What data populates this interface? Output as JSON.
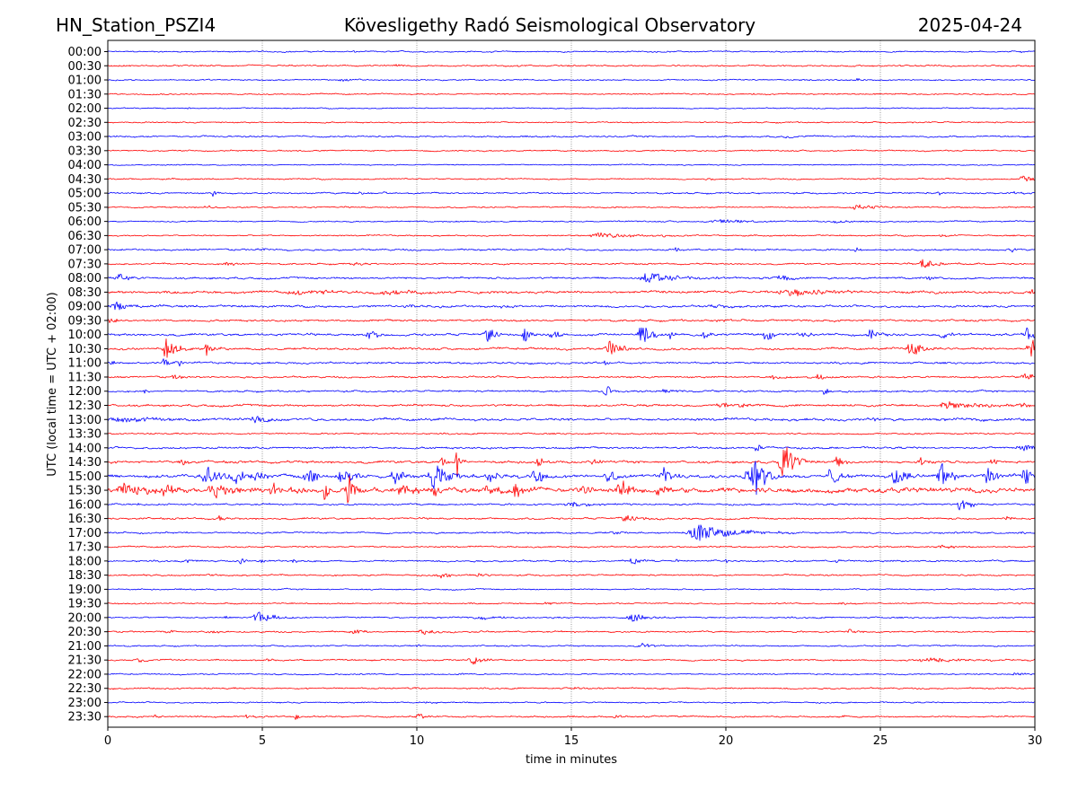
{
  "header": {
    "station": "HN_Station_PSZI4",
    "observatory": "Kövesligethy Radó Seismological Observatory",
    "date": "2025-04-24"
  },
  "chart_data": {
    "type": "line",
    "title": "Kövesligethy Radó Seismological Observatory",
    "xlabel": "time in minutes",
    "ylabel": "UTC (local time = UTC + 02:00)",
    "xlim": [
      0,
      30
    ],
    "xticks": [
      "0",
      "5",
      "10",
      "15",
      "20",
      "25",
      "30"
    ],
    "xtick_values": [
      0,
      5,
      10,
      15,
      20,
      25,
      30
    ],
    "grid": "vertical dotted at x ticks",
    "colors": {
      "even_rows": "#0000ff",
      "odd_rows": "#ff0000",
      "grid": "#555555",
      "axes": "#000000"
    },
    "rows": [
      {
        "label": "00:00",
        "noise": 0.6,
        "events": [
          [
            8.0,
            0.5,
            0.2
          ],
          [
            29.5,
            0.4,
            0.2
          ]
        ]
      },
      {
        "label": "00:30",
        "noise": 0.7,
        "events": [
          [
            9.3,
            0.8,
            0.3
          ],
          [
            13.3,
            0.5,
            0.2
          ]
        ]
      },
      {
        "label": "01:00",
        "noise": 0.6,
        "events": [
          [
            7.6,
            0.8,
            0.3
          ],
          [
            24.3,
            0.8,
            0.3
          ]
        ]
      },
      {
        "label": "01:30",
        "noise": 0.6,
        "events": [
          [
            20.9,
            0.5,
            0.2
          ]
        ]
      },
      {
        "label": "02:00",
        "noise": 0.5,
        "events": [
          [
            2.6,
            0.4,
            0.2
          ]
        ]
      },
      {
        "label": "02:30",
        "noise": 0.6,
        "events": [
          [
            4.9,
            0.4,
            0.2
          ]
        ]
      },
      {
        "label": "03:00",
        "noise": 0.7,
        "events": [
          [
            22.0,
            0.6,
            0.3
          ]
        ]
      },
      {
        "label": "03:30",
        "noise": 0.6,
        "events": [
          [
            5.6,
            0.5,
            0.2
          ]
        ]
      },
      {
        "label": "04:00",
        "noise": 0.5,
        "events": [
          [
            6.6,
            0.5,
            0.1
          ]
        ]
      },
      {
        "label": "04:30",
        "noise": 0.6,
        "events": [
          [
            19.4,
            0.8,
            0.2
          ],
          [
            29.6,
            2.2,
            0.3
          ]
        ]
      },
      {
        "label": "05:00",
        "noise": 0.7,
        "events": [
          [
            3.4,
            2.2,
            0.1
          ],
          [
            8.2,
            1.0,
            0.2
          ],
          [
            9.0,
            1.0,
            0.3
          ],
          [
            26.9,
            2.0,
            0.1
          ],
          [
            29.3,
            1.5,
            0.15
          ]
        ]
      },
      {
        "label": "05:30",
        "noise": 0.6,
        "events": [
          [
            3.2,
            1.2,
            0.2
          ],
          [
            24.3,
            1.4,
            0.8
          ]
        ]
      },
      {
        "label": "06:00",
        "noise": 0.6,
        "events": [
          [
            20.0,
            1.3,
            1.0
          ],
          [
            23.6,
            0.8,
            0.5
          ]
        ]
      },
      {
        "label": "06:30",
        "noise": 0.6,
        "events": [
          [
            16.0,
            1.6,
            0.9
          ],
          [
            18.0,
            1.0,
            0.2
          ],
          [
            27.0,
            0.6,
            0.3
          ]
        ]
      },
      {
        "label": "07:00",
        "noise": 0.8,
        "events": [
          [
            4.9,
            1.2,
            0.3
          ],
          [
            18.4,
            1.8,
            0.1
          ],
          [
            24.2,
            1.8,
            0.1
          ],
          [
            29.2,
            1.2,
            0.3
          ]
        ]
      },
      {
        "label": "07:30",
        "noise": 0.7,
        "events": [
          [
            3.9,
            1.6,
            0.3
          ],
          [
            8.0,
            0.8,
            0.3
          ],
          [
            26.4,
            3.2,
            0.4
          ]
        ]
      },
      {
        "label": "08:00",
        "noise": 0.9,
        "events": [
          [
            0.4,
            2.2,
            0.3
          ],
          [
            17.6,
            3.2,
            0.8
          ],
          [
            21.8,
            2.2,
            0.3
          ],
          [
            26.5,
            1.0,
            0.3
          ]
        ]
      },
      {
        "label": "08:30",
        "noise": 1.1,
        "events": [
          [
            6.2,
            1.6,
            1.2
          ],
          [
            9.2,
            1.3,
            1.0
          ],
          [
            22.3,
            1.8,
            1.4
          ],
          [
            29.9,
            1.8,
            0.2
          ]
        ]
      },
      {
        "label": "09:00",
        "noise": 1.0,
        "events": [
          [
            0.3,
            3.0,
            0.4
          ],
          [
            9.7,
            1.2,
            0.3
          ],
          [
            12.8,
            1.0,
            0.3
          ],
          [
            19.7,
            1.3,
            0.5
          ]
        ]
      },
      {
        "label": "09:30",
        "noise": 0.9,
        "events": [
          [
            0.1,
            1.8,
            0.2
          ],
          [
            19.8,
            1.3,
            0.3
          ]
        ]
      },
      {
        "label": "10:00",
        "noise": 1.0,
        "events": [
          [
            8.5,
            2.6,
            0.3
          ],
          [
            12.3,
            6.0,
            0.25
          ],
          [
            13.5,
            4.2,
            0.2
          ],
          [
            14.4,
            3.4,
            0.25
          ],
          [
            17.3,
            7.0,
            0.3
          ],
          [
            18.2,
            2.8,
            0.1
          ],
          [
            19.3,
            3.8,
            0.15
          ],
          [
            21.3,
            5.2,
            0.2
          ],
          [
            22.4,
            3.2,
            0.2
          ],
          [
            24.7,
            3.6,
            0.3
          ],
          [
            27.0,
            3.4,
            0.2
          ],
          [
            29.8,
            4.8,
            0.4
          ]
        ]
      },
      {
        "label": "10:30",
        "noise": 1.0,
        "events": [
          [
            1.9,
            7.0,
            0.3
          ],
          [
            3.2,
            4.2,
            0.2
          ],
          [
            16.2,
            7.0,
            0.3
          ],
          [
            26.0,
            5.6,
            0.3
          ],
          [
            29.9,
            6.2,
            0.3
          ]
        ]
      },
      {
        "label": "11:00",
        "noise": 0.9,
        "events": [
          [
            0.1,
            1.8,
            0.1
          ],
          [
            1.8,
            4.0,
            0.1
          ],
          [
            2.3,
            3.2,
            0.1
          ],
          [
            16.1,
            2.0,
            0.1
          ]
        ]
      },
      {
        "label": "11:30",
        "noise": 0.8,
        "events": [
          [
            2.2,
            1.6,
            0.3
          ],
          [
            21.5,
            1.4,
            0.3
          ],
          [
            23.0,
            2.2,
            0.2
          ],
          [
            29.8,
            2.2,
            0.6
          ]
        ]
      },
      {
        "label": "12:00",
        "noise": 0.8,
        "events": [
          [
            1.2,
            1.6,
            0.1
          ],
          [
            16.1,
            4.2,
            0.15
          ],
          [
            18.0,
            1.6,
            0.4
          ],
          [
            23.2,
            3.2,
            0.15
          ]
        ]
      },
      {
        "label": "12:30",
        "noise": 1.0,
        "events": [
          [
            20.0,
            1.2,
            1.0
          ],
          [
            27.3,
            2.2,
            1.0
          ],
          [
            29.5,
            1.5,
            0.3
          ]
        ]
      },
      {
        "label": "13:00",
        "noise": 1.2,
        "events": [
          [
            0.6,
            1.4,
            1.5
          ],
          [
            4.8,
            2.4,
            0.3
          ],
          [
            24.8,
            2.0,
            0.1
          ]
        ]
      },
      {
        "label": "13:30",
        "noise": 0.7,
        "events": [
          [
            26.2,
            0.6,
            0.2
          ]
        ]
      },
      {
        "label": "14:00",
        "noise": 0.9,
        "events": [
          [
            21.0,
            3.2,
            0.15
          ],
          [
            29.7,
            1.8,
            0.6
          ]
        ]
      },
      {
        "label": "14:30",
        "noise": 1.1,
        "events": [
          [
            2.4,
            2.5,
            0.2
          ],
          [
            10.8,
            3.2,
            0.2
          ],
          [
            11.3,
            9.5,
            0.1
          ],
          [
            13.9,
            4.2,
            0.15
          ],
          [
            15.7,
            2.0,
            0.2
          ],
          [
            21.9,
            12.0,
            0.35
          ],
          [
            23.6,
            4.2,
            0.2
          ],
          [
            26.3,
            2.6,
            0.2
          ],
          [
            28.6,
            2.2,
            0.2
          ]
        ]
      },
      {
        "label": "15:00",
        "noise": 1.4,
        "events": [
          [
            3.2,
            6.5,
            0.4
          ],
          [
            4.1,
            5.0,
            0.3
          ],
          [
            4.8,
            3.5,
            0.3
          ],
          [
            6.5,
            4.8,
            0.3
          ],
          [
            7.6,
            6.5,
            0.3
          ],
          [
            9.3,
            5.2,
            0.3
          ],
          [
            10.6,
            9.5,
            0.4
          ],
          [
            12.4,
            4.8,
            0.3
          ],
          [
            13.9,
            5.5,
            0.3
          ],
          [
            16.2,
            5.0,
            0.3
          ],
          [
            18.0,
            5.0,
            0.3
          ],
          [
            20.7,
            4.5,
            0.3
          ],
          [
            21.0,
            12.0,
            0.3
          ],
          [
            23.4,
            5.5,
            0.3
          ],
          [
            25.5,
            6.5,
            0.3
          ],
          [
            27.0,
            9.0,
            0.3
          ],
          [
            28.5,
            5.0,
            0.3
          ],
          [
            29.7,
            5.0,
            0.3
          ]
        ]
      },
      {
        "label": "15:30",
        "noise": 2.2,
        "events": [
          [
            0.6,
            3.4,
            0.6
          ],
          [
            1.9,
            4.6,
            0.3
          ],
          [
            3.5,
            4.2,
            0.5
          ],
          [
            5.4,
            3.6,
            0.4
          ],
          [
            7.0,
            5.0,
            0.2
          ],
          [
            7.8,
            9.0,
            0.2
          ],
          [
            9.5,
            4.2,
            0.3
          ],
          [
            10.6,
            3.4,
            0.3
          ],
          [
            12.3,
            3.2,
            0.3
          ],
          [
            13.2,
            3.8,
            0.3
          ],
          [
            15.3,
            3.8,
            0.2
          ],
          [
            16.6,
            7.0,
            0.25
          ],
          [
            17.9,
            3.0,
            0.4
          ]
        ]
      },
      {
        "label": "16:00",
        "noise": 0.8,
        "events": [
          [
            1.0,
            1.4,
            0.1
          ],
          [
            1.9,
            1.6,
            0.1
          ],
          [
            15.0,
            1.6,
            0.6
          ],
          [
            27.6,
            4.0,
            0.3
          ]
        ]
      },
      {
        "label": "16:30",
        "noise": 0.8,
        "events": [
          [
            3.6,
            2.0,
            0.15
          ],
          [
            16.8,
            2.4,
            0.5
          ],
          [
            29.1,
            1.0,
            0.3
          ]
        ]
      },
      {
        "label": "17:00",
        "noise": 0.8,
        "events": [
          [
            16.4,
            1.2,
            0.3
          ],
          [
            19.2,
            5.5,
            0.9
          ],
          [
            29.6,
            0.8,
            0.2
          ]
        ]
      },
      {
        "label": "17:30",
        "noise": 0.7,
        "events": [
          [
            27.0,
            1.0,
            0.5
          ]
        ]
      },
      {
        "label": "18:00",
        "noise": 0.8,
        "events": [
          [
            2.6,
            1.4,
            0.2
          ],
          [
            4.3,
            2.2,
            0.1
          ],
          [
            5.0,
            1.6,
            0.1
          ],
          [
            6.0,
            1.6,
            0.1
          ],
          [
            17.0,
            3.2,
            0.2
          ],
          [
            18.4,
            1.2,
            0.1
          ],
          [
            20.0,
            1.4,
            0.1
          ],
          [
            21.6,
            1.6,
            0.1
          ],
          [
            23.6,
            1.4,
            0.1
          ],
          [
            25.7,
            1.4,
            0.1
          ]
        ]
      },
      {
        "label": "18:30",
        "noise": 0.7,
        "events": [
          [
            1.2,
            1.4,
            0.1
          ],
          [
            3.3,
            1.4,
            0.1
          ],
          [
            10.8,
            1.4,
            0.3
          ],
          [
            12.0,
            1.0,
            0.2
          ]
        ]
      },
      {
        "label": "19:00",
        "noise": 0.6,
        "events": []
      },
      {
        "label": "19:30",
        "noise": 0.6,
        "events": [
          [
            14.2,
            0.8,
            0.3
          ],
          [
            23.8,
            0.8,
            0.3
          ],
          [
            29.5,
            0.8,
            0.2
          ]
        ]
      },
      {
        "label": "20:00",
        "noise": 0.7,
        "events": [
          [
            4.9,
            4.0,
            0.4
          ],
          [
            3.8,
            1.0,
            0.2
          ],
          [
            12.2,
            1.2,
            0.5
          ],
          [
            17.0,
            2.6,
            0.4
          ]
        ]
      },
      {
        "label": "20:30",
        "noise": 0.7,
        "events": [
          [
            1.9,
            1.4,
            0.2
          ],
          [
            3.3,
            1.2,
            0.3
          ],
          [
            8.0,
            1.4,
            0.3
          ],
          [
            10.2,
            1.8,
            0.4
          ],
          [
            24.0,
            1.4,
            0.3
          ]
        ]
      },
      {
        "label": "21:00",
        "noise": 0.6,
        "events": [
          [
            10.0,
            1.0,
            0.1
          ],
          [
            17.3,
            1.6,
            0.4
          ]
        ]
      },
      {
        "label": "21:30",
        "noise": 0.7,
        "events": [
          [
            1.0,
            1.4,
            0.2
          ],
          [
            5.2,
            1.0,
            0.2
          ],
          [
            11.8,
            2.6,
            0.4
          ],
          [
            26.7,
            1.4,
            1.2
          ],
          [
            29.8,
            1.0,
            0.2
          ]
        ]
      },
      {
        "label": "22:00",
        "noise": 0.6,
        "events": [
          [
            11.5,
            0.8,
            0.3
          ],
          [
            29.4,
            1.2,
            0.2
          ]
        ]
      },
      {
        "label": "22:30",
        "noise": 0.7,
        "events": [
          [
            9.8,
            0.6,
            0.2
          ],
          [
            15.0,
            0.8,
            0.3
          ]
        ]
      },
      {
        "label": "23:00",
        "noise": 0.6,
        "events": [
          [
            10.3,
            0.8,
            0.3
          ],
          [
            29.8,
            0.4,
            0.2
          ]
        ]
      },
      {
        "label": "23:30",
        "noise": 0.7,
        "events": [
          [
            1.5,
            2.2,
            0.1
          ],
          [
            4.5,
            2.0,
            0.1
          ],
          [
            6.1,
            2.2,
            0.1
          ],
          [
            10.0,
            3.2,
            0.2
          ],
          [
            16.4,
            1.2,
            0.3
          ],
          [
            23.8,
            0.8,
            0.1
          ]
        ]
      }
    ]
  }
}
